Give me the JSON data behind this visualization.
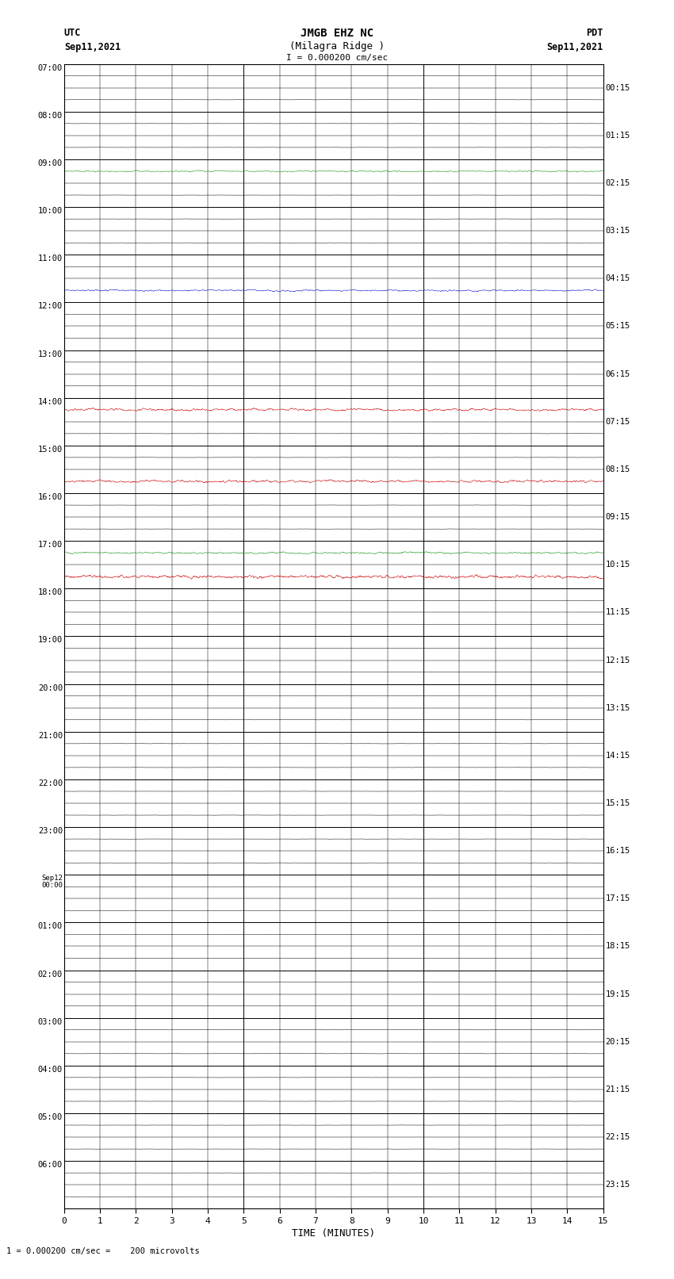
{
  "title_line1": "JMGB EHZ NC",
  "title_line2": "(Milagra Ridge )",
  "scale_label": "I = 0.000200 cm/sec",
  "left_label": "UTC",
  "left_date": "Sep11,2021",
  "right_label": "PDT",
  "right_date": "Sep11,2021",
  "bottom_label": "TIME (MINUTES)",
  "bottom_note": "1 = 0.000200 cm/sec =    200 microvolts",
  "x_min": 0,
  "x_max": 15,
  "n_rows": 48,
  "background_color": "#ffffff",
  "fig_width": 8.5,
  "fig_height": 16.13,
  "dpi": 100,
  "utc_labels": [
    "07:00",
    "08:00",
    "09:00",
    "10:00",
    "11:00",
    "12:00",
    "13:00",
    "14:00",
    "15:00",
    "16:00",
    "17:00",
    "18:00",
    "19:00",
    "20:00",
    "21:00",
    "22:00",
    "23:00",
    "Sep12\n00:00",
    "01:00",
    "02:00",
    "03:00",
    "04:00",
    "05:00",
    "06:00"
  ],
  "pdt_labels": [
    "00:15",
    "01:15",
    "02:15",
    "03:15",
    "04:15",
    "05:15",
    "06:15",
    "07:15",
    "08:15",
    "09:15",
    "10:15",
    "11:15",
    "12:15",
    "13:15",
    "14:15",
    "15:15",
    "16:15",
    "17:15",
    "18:15",
    "19:15",
    "20:15",
    "21:15",
    "22:15",
    "23:15"
  ],
  "special_row_colors": {
    "4": "#008800",
    "9": "#0000cc",
    "14": "#cc0000",
    "17": "#cc0000",
    "20": "#008800",
    "21": "#cc0000"
  },
  "special_row_amplitudes": {
    "4": 0.06,
    "9": 0.08,
    "14": 0.12,
    "17": 0.12,
    "20": 0.08,
    "21": 0.15
  },
  "default_color": "#000000",
  "default_amplitude": 0.008,
  "trace_lw": 0.35,
  "n_trace_points": 3000,
  "major_hline_lw": 0.7,
  "minor_hline_lw": 0.35,
  "major_vline_lw": 0.7,
  "minor_vline_lw": 0.35
}
